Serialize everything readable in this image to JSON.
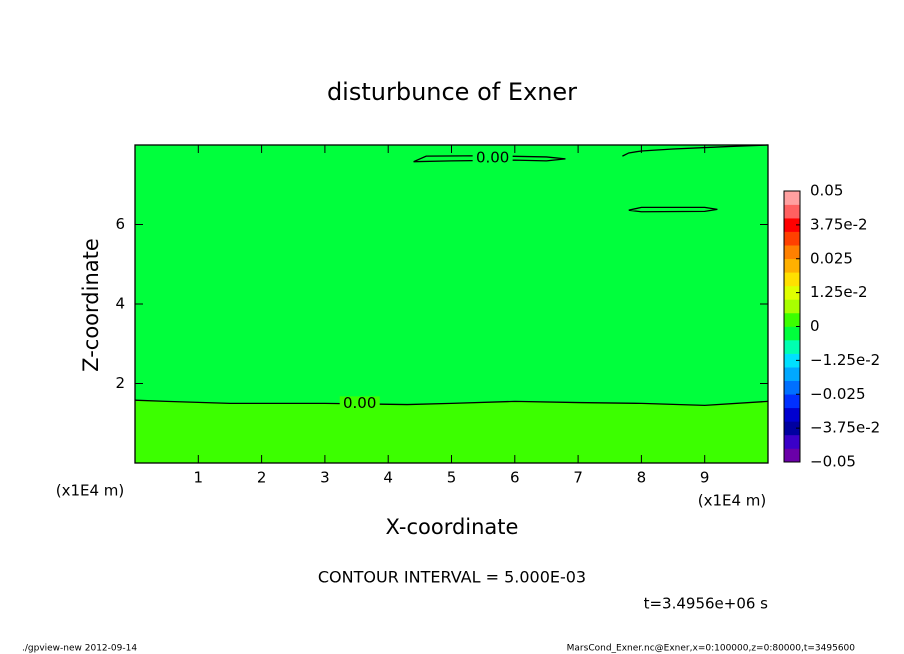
{
  "chart_data": {
    "type": "contour",
    "title": "disturbunce of Exner",
    "x_label": "X-coordinate",
    "y_label": "Z-coordinate",
    "x_unit_left": "(x1E4 m)",
    "x_unit_right": "(x1E4 m)",
    "xlim": [
      0,
      10
    ],
    "ylim": [
      0,
      8
    ],
    "xticks": [
      1,
      2,
      3,
      4,
      5,
      6,
      7,
      8,
      9
    ],
    "yticks": [
      2,
      4,
      6
    ],
    "fill_above": "#00ff3c",
    "fill_below": "#3cff00",
    "line_color": "#000000",
    "contours": [
      {
        "label": "0.00",
        "label_x": 3.55,
        "label_y": 1.5,
        "x": [
          0,
          0.5,
          1.5,
          3,
          4.3,
          5,
          6,
          7,
          8,
          9,
          10
        ],
        "y": [
          1.58,
          1.55,
          1.5,
          1.5,
          1.47,
          1.5,
          1.55,
          1.52,
          1.5,
          1.45,
          1.55
        ]
      },
      {
        "label": "0.00",
        "label_x": 5.65,
        "label_y": 7.67,
        "x": [
          4.4,
          4.6,
          5.5,
          6.5,
          6.8,
          6.5,
          6.0,
          5.0,
          4.4
        ],
        "y": [
          7.58,
          7.72,
          7.73,
          7.7,
          7.65,
          7.6,
          7.62,
          7.6,
          7.58
        ]
      },
      {
        "label": null,
        "label_x": null,
        "label_y": null,
        "x": [
          7.8,
          8,
          9,
          9.2,
          9,
          8,
          7.8
        ],
        "y": [
          6.36,
          6.43,
          6.43,
          6.38,
          6.33,
          6.32,
          6.36
        ]
      },
      {
        "label": null,
        "label_x": null,
        "label_y": null,
        "x": [
          7.7,
          7.8,
          8,
          8.5,
          9.5,
          10
        ],
        "y": [
          7.72,
          7.8,
          7.85,
          7.9,
          7.97,
          8
        ]
      }
    ],
    "colorbar": {
      "lim": [
        -0.05,
        0.05
      ],
      "colors": [
        "#6a00a8",
        "#3a00c8",
        "#0000a0",
        "#0000d0",
        "#0030ff",
        "#0070ff",
        "#00a8ff",
        "#00e0ff",
        "#00ffb0",
        "#00ff3c",
        "#3cff00",
        "#a8ff00",
        "#e0ff00",
        "#ffe000",
        "#ffb000",
        "#ff8000",
        "#ff4000",
        "#ff0000",
        "#ff6060",
        "#ffa0a0"
      ],
      "ticks": [
        {
          "value": 0.05,
          "label": "0.05"
        },
        {
          "value": 0.0375,
          "label": "3.75e-2"
        },
        {
          "value": 0.025,
          "label": "0.025"
        },
        {
          "value": 0.0125,
          "label": "1.25e-2"
        },
        0,
        {
          "value": -0.0125,
          "label": "−1.25e-2"
        },
        {
          "value": -0.025,
          "label": "−0.025"
        },
        {
          "value": -0.0375,
          "label": "−3.75e-2"
        },
        {
          "value": -0.05,
          "label": "−0.05"
        }
      ]
    },
    "contour_interval": "CONTOUR INTERVAL = 5.000E-03",
    "time": "t=3.4956e+06 s",
    "footer_left": "./gpview-new  2012-09-14",
    "footer_right": "MarsCond_Exner.nc@Exner,x=0:100000,z=0:80000,t=3495600"
  }
}
